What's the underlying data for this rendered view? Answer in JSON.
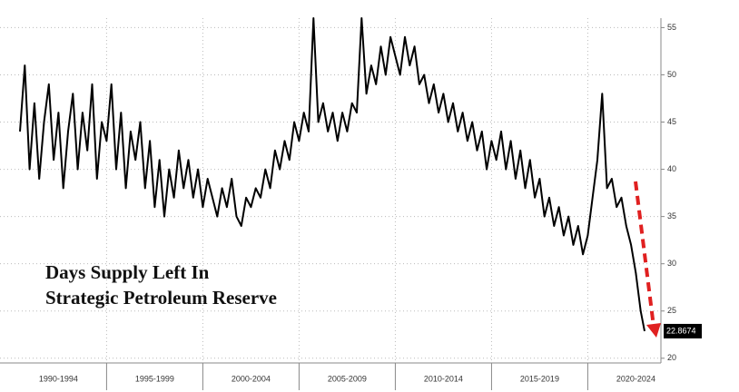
{
  "chart_data": {
    "type": "line",
    "title_lines": [
      "Days Supply Left In",
      "Strategic Petroleum Reserve"
    ],
    "x": [
      1990.5,
      1990.75,
      1991,
      1991.25,
      1991.5,
      1991.75,
      1992,
      1992.25,
      1992.5,
      1992.75,
      1993,
      1993.25,
      1993.5,
      1993.75,
      1994,
      1994.25,
      1994.5,
      1994.75,
      1995,
      1995.25,
      1995.5,
      1995.75,
      1996,
      1996.25,
      1996.5,
      1996.75,
      1997,
      1997.25,
      1997.5,
      1997.75,
      1998,
      1998.25,
      1998.5,
      1998.75,
      1999,
      1999.25,
      1999.5,
      1999.75,
      2000,
      2000.25,
      2000.5,
      2000.75,
      2001,
      2001.25,
      2001.5,
      2001.75,
      2002,
      2002.25,
      2002.5,
      2002.75,
      2003,
      2003.25,
      2003.5,
      2003.75,
      2004,
      2004.25,
      2004.5,
      2004.75,
      2005,
      2005.25,
      2005.5,
      2005.75,
      2006,
      2006.25,
      2006.5,
      2006.75,
      2007,
      2007.25,
      2007.5,
      2007.75,
      2008,
      2008.25,
      2008.5,
      2008.75,
      2009,
      2009.25,
      2009.5,
      2009.75,
      2010,
      2010.25,
      2010.5,
      2010.75,
      2011,
      2011.25,
      2011.5,
      2011.75,
      2012,
      2012.25,
      2012.5,
      2012.75,
      2013,
      2013.25,
      2013.5,
      2013.75,
      2014,
      2014.25,
      2014.5,
      2014.75,
      2015,
      2015.25,
      2015.5,
      2015.75,
      2016,
      2016.25,
      2016.5,
      2016.75,
      2017,
      2017.25,
      2017.5,
      2017.75,
      2018,
      2018.25,
      2018.5,
      2018.75,
      2019,
      2019.25,
      2019.5,
      2019.75,
      2020,
      2020.25,
      2020.5,
      2020.75,
      2021,
      2021.25,
      2021.5,
      2021.75,
      2022,
      2022.25,
      2022.5,
      2022.75,
      2022.95
    ],
    "series": [
      {
        "name": "Days Supply",
        "color": "#000000",
        "values": [
          44,
          51,
          40,
          47,
          39,
          45,
          49,
          41,
          46,
          38,
          44,
          48,
          40,
          46,
          42,
          49,
          39,
          45,
          43,
          49,
          40,
          46,
          38,
          44,
          41,
          45,
          38,
          43,
          36,
          41,
          35,
          40,
          37,
          42,
          38,
          41,
          37,
          40,
          36,
          39,
          37,
          35,
          38,
          36,
          39,
          35,
          34,
          37,
          36,
          38,
          37,
          40,
          38,
          42,
          40,
          43,
          41,
          45,
          43,
          46,
          44,
          56,
          45,
          47,
          44,
          46,
          43,
          46,
          44,
          47,
          46,
          56,
          48,
          51,
          49,
          53,
          50,
          54,
          52,
          50,
          54,
          51,
          53,
          49,
          50,
          47,
          49,
          46,
          48,
          45,
          47,
          44,
          46,
          43,
          45,
          42,
          44,
          40,
          43,
          41,
          44,
          40,
          43,
          39,
          42,
          38,
          41,
          37,
          39,
          35,
          37,
          34,
          36,
          33,
          35,
          32,
          34,
          31,
          33,
          37,
          41,
          48,
          38,
          39,
          36,
          37,
          34,
          32,
          29,
          25,
          22.8674
        ]
      }
    ],
    "xlim": [
      1990.5,
      2023.8
    ],
    "xticks": [
      {
        "value": 1992.5,
        "label": "1990-1994"
      },
      {
        "value": 1997.5,
        "label": "1995-1999"
      },
      {
        "value": 2002.5,
        "label": "2000-2004"
      },
      {
        "value": 2007.5,
        "label": "2005-2009"
      },
      {
        "value": 2012.5,
        "label": "2010-2014"
      },
      {
        "value": 2017.5,
        "label": "2015-2019"
      },
      {
        "value": 2022.5,
        "label": "2020-2024"
      }
    ],
    "ylim": [
      19.5,
      56
    ],
    "yticks": [
      20,
      25,
      30,
      35,
      40,
      45,
      50,
      55
    ],
    "grid": true
  }
}
